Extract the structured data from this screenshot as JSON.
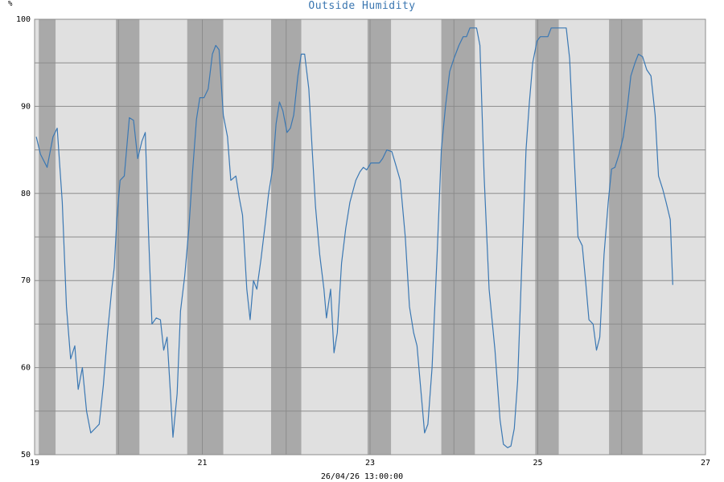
{
  "chart_data": {
    "type": "line",
    "title": "Outside Humidity",
    "ylabel": "%",
    "footer": "26/04/26 13:00:00",
    "ylim": [
      50,
      100
    ],
    "xlim": [
      19,
      27
    ],
    "y_ticks": [
      50,
      60,
      70,
      80,
      90,
      100
    ],
    "x_ticks": [
      19,
      21,
      23,
      25,
      27
    ],
    "x_tick_labels": [
      "19",
      "21",
      "23",
      "25",
      "27"
    ],
    "minor_grid_y": [
      55,
      65,
      75,
      85,
      95
    ],
    "minor_grid_x": [
      20,
      22,
      24,
      26
    ],
    "night_bands": [
      [
        19.05,
        19.25
      ],
      [
        19.97,
        20.25
      ],
      [
        20.82,
        21.25
      ],
      [
        21.82,
        22.18
      ],
      [
        22.97,
        23.25
      ],
      [
        23.85,
        24.25
      ],
      [
        24.97,
        25.25
      ],
      [
        25.85,
        26.25
      ]
    ],
    "grid": true,
    "line_color": "#3b78b3",
    "series": [
      {
        "values": [
          [
            19.02,
            86.5
          ],
          [
            19.07,
            84.5
          ],
          [
            19.15,
            83.0
          ],
          [
            19.22,
            86.5
          ],
          [
            19.27,
            87.5
          ],
          [
            19.33,
            79
          ],
          [
            19.38,
            67
          ],
          [
            19.43,
            61
          ],
          [
            19.48,
            62.5
          ],
          [
            19.52,
            57.5
          ],
          [
            19.57,
            60
          ],
          [
            19.62,
            55
          ],
          [
            19.67,
            52.5
          ],
          [
            19.72,
            53
          ],
          [
            19.77,
            53.5
          ],
          [
            19.82,
            58
          ],
          [
            19.87,
            64
          ],
          [
            19.92,
            69
          ],
          [
            19.95,
            71.5
          ],
          [
            19.98,
            77
          ],
          [
            20.02,
            81.5
          ],
          [
            20.07,
            82
          ],
          [
            20.13,
            88.7
          ],
          [
            20.18,
            88.4
          ],
          [
            20.23,
            84
          ],
          [
            20.28,
            86
          ],
          [
            20.32,
            87
          ],
          [
            20.36,
            75
          ],
          [
            20.4,
            65
          ],
          [
            20.45,
            65.7
          ],
          [
            20.5,
            65.5
          ],
          [
            20.54,
            62
          ],
          [
            20.58,
            63.5
          ],
          [
            20.62,
            57
          ],
          [
            20.65,
            52
          ],
          [
            20.7,
            57
          ],
          [
            20.74,
            66.5
          ],
          [
            20.79,
            70.5
          ],
          [
            20.84,
            76
          ],
          [
            20.88,
            82
          ],
          [
            20.93,
            88.5
          ],
          [
            20.97,
            91
          ],
          [
            21.02,
            91
          ],
          [
            21.07,
            92
          ],
          [
            21.12,
            96
          ],
          [
            21.16,
            97
          ],
          [
            21.2,
            96.5
          ],
          [
            21.25,
            89
          ],
          [
            21.3,
            86.5
          ],
          [
            21.34,
            81.5
          ],
          [
            21.4,
            82
          ],
          [
            21.44,
            79.5
          ],
          [
            21.48,
            77.5
          ],
          [
            21.53,
            69
          ],
          [
            21.57,
            65.5
          ],
          [
            21.61,
            70
          ],
          [
            21.65,
            69
          ],
          [
            21.7,
            72.5
          ],
          [
            21.75,
            76.5
          ],
          [
            21.79,
            80
          ],
          [
            21.84,
            83
          ],
          [
            21.88,
            88
          ],
          [
            21.92,
            90.5
          ],
          [
            21.96,
            89.5
          ],
          [
            22.01,
            87
          ],
          [
            22.05,
            87.5
          ],
          [
            22.09,
            89
          ],
          [
            22.14,
            93.5
          ],
          [
            22.18,
            96
          ],
          [
            22.22,
            96
          ],
          [
            22.27,
            92
          ],
          [
            22.31,
            85
          ],
          [
            22.35,
            78.5
          ],
          [
            22.4,
            73
          ],
          [
            22.45,
            69
          ],
          [
            22.48,
            65.7
          ],
          [
            22.53,
            69
          ],
          [
            22.57,
            61.7
          ],
          [
            22.61,
            64
          ],
          [
            22.66,
            72
          ],
          [
            22.71,
            76
          ],
          [
            22.76,
            79
          ],
          [
            22.83,
            81.5
          ],
          [
            22.88,
            82.5
          ],
          [
            22.92,
            83
          ],
          [
            22.96,
            82.7
          ],
          [
            23.01,
            83.5
          ],
          [
            23.06,
            83.5
          ],
          [
            23.11,
            83.5
          ],
          [
            23.15,
            84
          ],
          [
            23.2,
            85
          ],
          [
            23.26,
            84.8
          ],
          [
            23.3,
            83.5
          ],
          [
            23.36,
            81.5
          ],
          [
            23.42,
            75
          ],
          [
            23.47,
            67
          ],
          [
            23.52,
            64
          ],
          [
            23.56,
            62.5
          ],
          [
            23.6,
            58
          ],
          [
            23.65,
            52.5
          ],
          [
            23.69,
            53.5
          ],
          [
            23.74,
            60
          ],
          [
            23.8,
            73
          ],
          [
            23.85,
            85
          ],
          [
            23.9,
            90
          ],
          [
            23.95,
            94
          ],
          [
            24.0,
            95.5
          ],
          [
            24.06,
            97
          ],
          [
            24.11,
            98
          ],
          [
            24.15,
            98
          ],
          [
            24.19,
            99
          ],
          [
            24.23,
            99
          ],
          [
            24.27,
            99
          ],
          [
            24.31,
            97
          ],
          [
            24.36,
            82
          ],
          [
            24.42,
            69
          ],
          [
            24.49,
            62
          ],
          [
            24.55,
            54
          ],
          [
            24.59,
            51.2
          ],
          [
            24.64,
            50.8
          ],
          [
            24.68,
            51
          ],
          [
            24.72,
            53
          ],
          [
            24.76,
            58.5
          ],
          [
            24.81,
            72
          ],
          [
            24.86,
            85
          ],
          [
            24.9,
            90.5
          ],
          [
            24.94,
            95
          ],
          [
            24.99,
            97.5
          ],
          [
            25.03,
            98
          ],
          [
            25.07,
            98
          ],
          [
            25.12,
            98
          ],
          [
            25.16,
            99
          ],
          [
            25.21,
            99
          ],
          [
            25.25,
            99
          ],
          [
            25.3,
            99
          ],
          [
            25.34,
            99
          ],
          [
            25.38,
            95.5
          ],
          [
            25.44,
            83
          ],
          [
            25.48,
            75
          ],
          [
            25.53,
            74
          ],
          [
            25.57,
            70
          ],
          [
            25.61,
            65.5
          ],
          [
            25.66,
            65
          ],
          [
            25.7,
            62
          ],
          [
            25.74,
            63.5
          ],
          [
            25.79,
            73
          ],
          [
            25.84,
            79
          ],
          [
            25.88,
            82.8
          ],
          [
            25.92,
            83
          ],
          [
            25.97,
            84.5
          ],
          [
            26.02,
            86.5
          ],
          [
            26.07,
            90
          ],
          [
            26.11,
            93.5
          ],
          [
            26.16,
            95
          ],
          [
            26.2,
            96
          ],
          [
            26.25,
            95.7
          ],
          [
            26.3,
            94.2
          ],
          [
            26.35,
            93.5
          ],
          [
            26.4,
            89
          ],
          [
            26.44,
            82
          ],
          [
            26.49,
            80.5
          ],
          [
            26.53,
            79
          ],
          [
            26.58,
            77
          ],
          [
            26.61,
            69.5
          ]
        ]
      }
    ]
  }
}
